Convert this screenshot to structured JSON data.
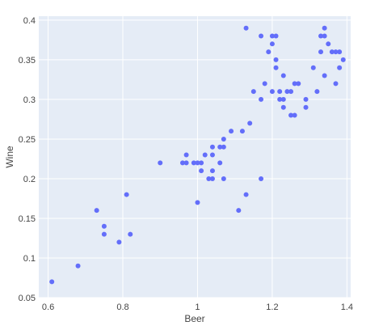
{
  "chart_data": {
    "type": "scatter",
    "title": "",
    "xlabel": "Beer",
    "ylabel": "Wine",
    "xlim": [
      0.575,
      1.41
    ],
    "ylim": [
      0.05,
      0.405
    ],
    "xticks": [
      0.6,
      0.8,
      1,
      1.2,
      1.4
    ],
    "xtick_labels": [
      "0.6",
      "0.8",
      "1",
      "1.2",
      "1.4"
    ],
    "yticks": [
      0.05,
      0.1,
      0.15,
      0.2,
      0.25,
      0.3,
      0.35,
      0.4
    ],
    "ytick_labels": [
      "0.05",
      "0.1",
      "0.15",
      "0.2",
      "0.25",
      "0.3",
      "0.35",
      "0.4"
    ],
    "grid": true,
    "legend": "none",
    "colors": {
      "marker": "#636efa",
      "plot_bg": "#e5ecf6",
      "grid": "#ffffff"
    },
    "points": [
      {
        "x": 0.61,
        "y": 0.07
      },
      {
        "x": 0.68,
        "y": 0.09
      },
      {
        "x": 0.73,
        "y": 0.16
      },
      {
        "x": 0.75,
        "y": 0.14
      },
      {
        "x": 0.75,
        "y": 0.13
      },
      {
        "x": 0.79,
        "y": 0.12
      },
      {
        "x": 0.81,
        "y": 0.18
      },
      {
        "x": 0.82,
        "y": 0.13
      },
      {
        "x": 0.9,
        "y": 0.22
      },
      {
        "x": 0.96,
        "y": 0.22
      },
      {
        "x": 0.97,
        "y": 0.23
      },
      {
        "x": 0.97,
        "y": 0.22
      },
      {
        "x": 0.99,
        "y": 0.22
      },
      {
        "x": 1.0,
        "y": 0.22
      },
      {
        "x": 1.01,
        "y": 0.22
      },
      {
        "x": 1.0,
        "y": 0.17
      },
      {
        "x": 1.01,
        "y": 0.21
      },
      {
        "x": 1.02,
        "y": 0.23
      },
      {
        "x": 1.03,
        "y": 0.2
      },
      {
        "x": 1.04,
        "y": 0.2
      },
      {
        "x": 1.04,
        "y": 0.21
      },
      {
        "x": 1.04,
        "y": 0.23
      },
      {
        "x": 1.04,
        "y": 0.24
      },
      {
        "x": 1.06,
        "y": 0.24
      },
      {
        "x": 1.07,
        "y": 0.24
      },
      {
        "x": 1.07,
        "y": 0.25
      },
      {
        "x": 1.07,
        "y": 0.2
      },
      {
        "x": 1.06,
        "y": 0.22
      },
      {
        "x": 1.09,
        "y": 0.26
      },
      {
        "x": 1.11,
        "y": 0.16
      },
      {
        "x": 1.12,
        "y": 0.26
      },
      {
        "x": 1.13,
        "y": 0.18
      },
      {
        "x": 1.13,
        "y": 0.39
      },
      {
        "x": 1.14,
        "y": 0.27
      },
      {
        "x": 1.15,
        "y": 0.31
      },
      {
        "x": 1.17,
        "y": 0.3
      },
      {
        "x": 1.17,
        "y": 0.38
      },
      {
        "x": 1.17,
        "y": 0.2
      },
      {
        "x": 1.18,
        "y": 0.32
      },
      {
        "x": 1.19,
        "y": 0.36
      },
      {
        "x": 1.2,
        "y": 0.38
      },
      {
        "x": 1.2,
        "y": 0.37
      },
      {
        "x": 1.21,
        "y": 0.38
      },
      {
        "x": 1.21,
        "y": 0.35
      },
      {
        "x": 1.21,
        "y": 0.34
      },
      {
        "x": 1.2,
        "y": 0.31
      },
      {
        "x": 1.22,
        "y": 0.31
      },
      {
        "x": 1.22,
        "y": 0.3
      },
      {
        "x": 1.23,
        "y": 0.33
      },
      {
        "x": 1.23,
        "y": 0.3
      },
      {
        "x": 1.23,
        "y": 0.29
      },
      {
        "x": 1.24,
        "y": 0.31
      },
      {
        "x": 1.25,
        "y": 0.31
      },
      {
        "x": 1.25,
        "y": 0.28
      },
      {
        "x": 1.26,
        "y": 0.28
      },
      {
        "x": 1.26,
        "y": 0.32
      },
      {
        "x": 1.27,
        "y": 0.32
      },
      {
        "x": 1.29,
        "y": 0.3
      },
      {
        "x": 1.29,
        "y": 0.29
      },
      {
        "x": 1.31,
        "y": 0.34
      },
      {
        "x": 1.32,
        "y": 0.31
      },
      {
        "x": 1.33,
        "y": 0.38
      },
      {
        "x": 1.33,
        "y": 0.36
      },
      {
        "x": 1.34,
        "y": 0.38
      },
      {
        "x": 1.34,
        "y": 0.39
      },
      {
        "x": 1.34,
        "y": 0.33
      },
      {
        "x": 1.35,
        "y": 0.37
      },
      {
        "x": 1.36,
        "y": 0.36
      },
      {
        "x": 1.37,
        "y": 0.36
      },
      {
        "x": 1.37,
        "y": 0.32
      },
      {
        "x": 1.38,
        "y": 0.34
      },
      {
        "x": 1.38,
        "y": 0.36
      },
      {
        "x": 1.39,
        "y": 0.35
      }
    ]
  }
}
